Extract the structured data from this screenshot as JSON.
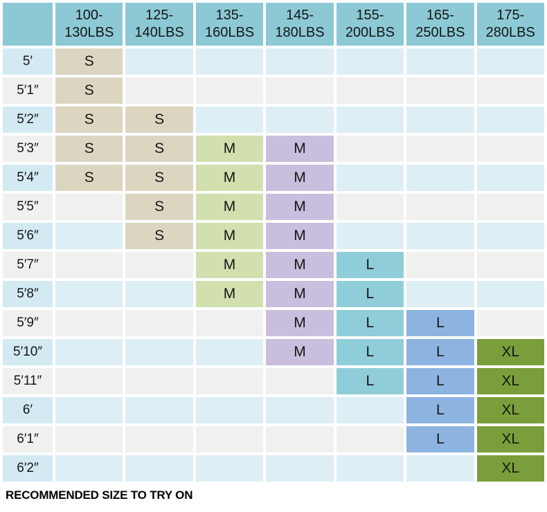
{
  "page": {
    "background": "#ffffff"
  },
  "colors": {
    "header_fill": "#8cc9d5",
    "row_label_blue": "#d3eaf3",
    "row_empty_blue": "#ddeef5",
    "row_gray": "#f0f0ef",
    "text": "#151515"
  },
  "chart_data": {
    "type": "table",
    "title": "",
    "footer": "RECOMMENDED SIZE TO TRY ON",
    "legend": {
      "S_fill": "#dcd6c1",
      "M_green_fill": "#d2e0af",
      "M_purple_fill": "#c9bedd",
      "L_teal_fill": "#8fced9",
      "L_blue_fill": "#8db4e1",
      "XL_olive_fill": "#7a9e3b"
    },
    "columns": [
      {
        "label": "100-130LBS",
        "line1": "100-",
        "line2": "130LBS",
        "fill": "#dcd6c1"
      },
      {
        "label": "125-140LBS",
        "line1": "125-",
        "line2": "140LBS",
        "fill": "#dcd6c1"
      },
      {
        "label": "135-160LBS",
        "line1": "135-",
        "line2": "160LBS",
        "fill": "#d2e0af"
      },
      {
        "label": "145-180LBS",
        "line1": "145-",
        "line2": "180LBS",
        "fill": "#c9bedd"
      },
      {
        "label": "155-200LBS",
        "line1": "155-",
        "line2": "200LBS",
        "fill": "#8fced9"
      },
      {
        "label": "165-250LBS",
        "line1": "165-",
        "line2": "250LBS",
        "fill": "#8db4e1"
      },
      {
        "label": "175-280LBS",
        "line1": "175-",
        "line2": "280LBS",
        "fill": "#7a9e3b"
      }
    ],
    "rows": [
      {
        "height": "5′",
        "sizes": [
          "S",
          "",
          "",
          "",
          "",
          "",
          ""
        ]
      },
      {
        "height": "5′1″",
        "sizes": [
          "S",
          "",
          "",
          "",
          "",
          "",
          ""
        ]
      },
      {
        "height": "5′2″",
        "sizes": [
          "S",
          "S",
          "",
          "",
          "",
          "",
          ""
        ]
      },
      {
        "height": "5′3″",
        "sizes": [
          "S",
          "S",
          "M",
          "M",
          "",
          "",
          ""
        ]
      },
      {
        "height": "5′4″",
        "sizes": [
          "S",
          "S",
          "M",
          "M",
          "",
          "",
          ""
        ]
      },
      {
        "height": "5′5″",
        "sizes": [
          "",
          "S",
          "M",
          "M",
          "",
          "",
          ""
        ]
      },
      {
        "height": "5′6″",
        "sizes": [
          "",
          "S",
          "M",
          "M",
          "",
          "",
          ""
        ]
      },
      {
        "height": "5′7″",
        "sizes": [
          "",
          "",
          "M",
          "M",
          "L",
          "",
          ""
        ]
      },
      {
        "height": "5′8″",
        "sizes": [
          "",
          "",
          "M",
          "M",
          "L",
          "",
          ""
        ]
      },
      {
        "height": "5′9″",
        "sizes": [
          "",
          "",
          "",
          "M",
          "L",
          "L",
          ""
        ]
      },
      {
        "height": "5′10″",
        "sizes": [
          "",
          "",
          "",
          "M",
          "L",
          "L",
          "XL"
        ]
      },
      {
        "height": "5′11″",
        "sizes": [
          "",
          "",
          "",
          "",
          "L",
          "L",
          "XL"
        ]
      },
      {
        "height": "6′",
        "sizes": [
          "",
          "",
          "",
          "",
          "",
          "L",
          "XL"
        ]
      },
      {
        "height": "6′1″",
        "sizes": [
          "",
          "",
          "",
          "",
          "",
          "L",
          "XL"
        ]
      },
      {
        "height": "6′2″",
        "sizes": [
          "",
          "",
          "",
          "",
          "",
          "",
          "XL"
        ]
      }
    ]
  }
}
